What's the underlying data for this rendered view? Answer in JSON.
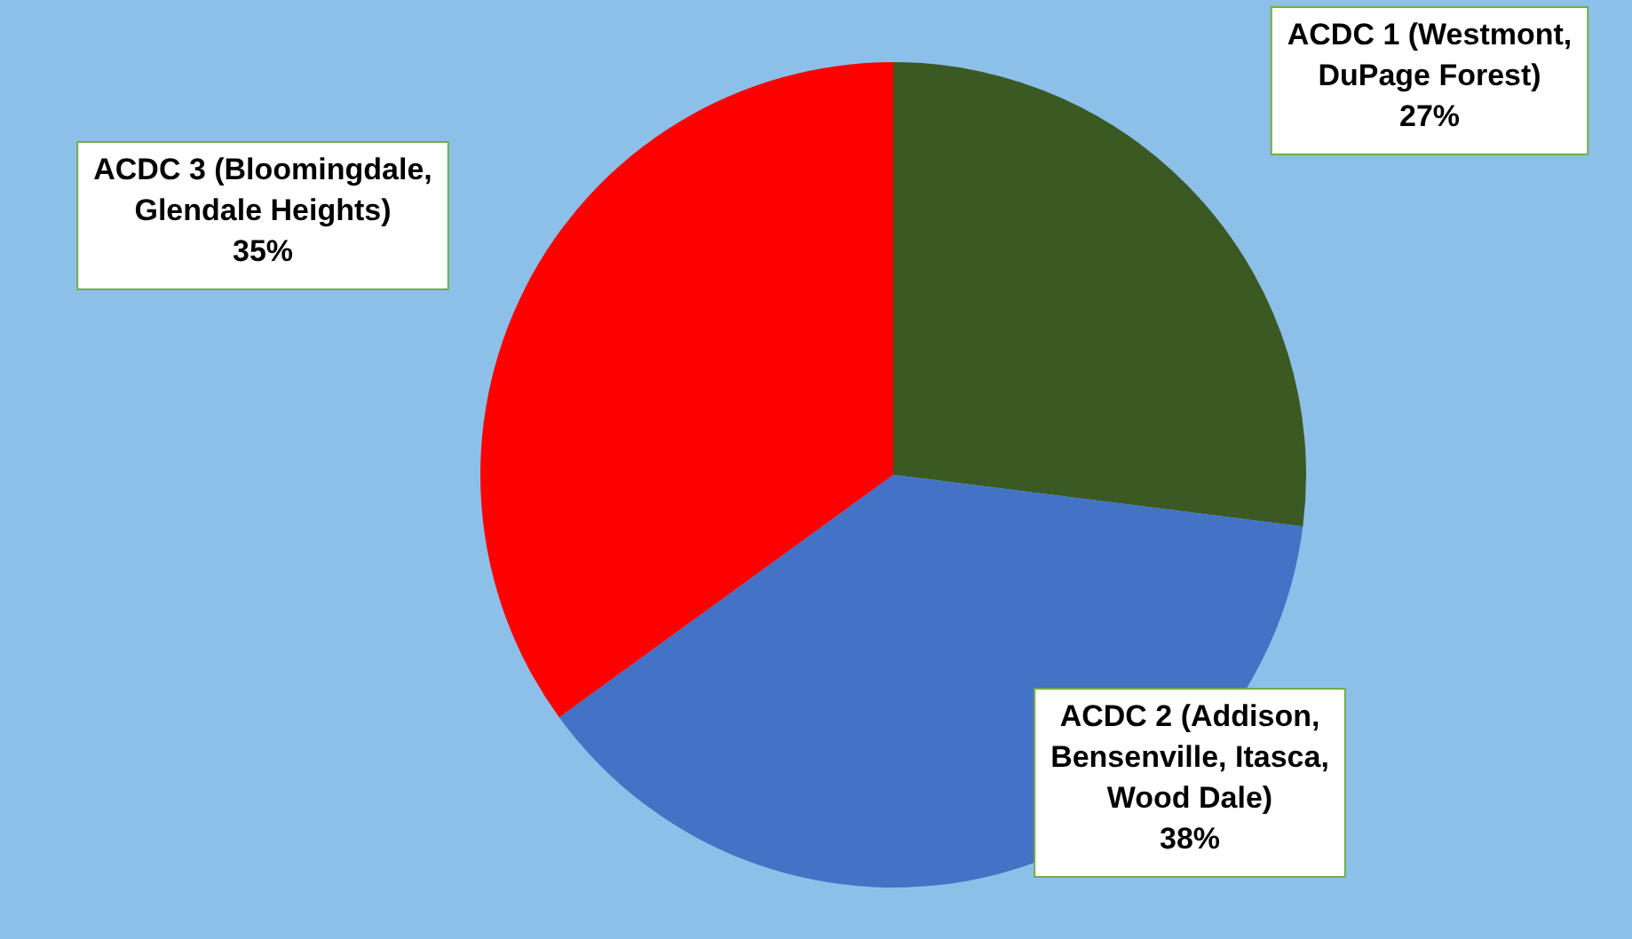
{
  "chart_data": {
    "type": "pie",
    "categories": [
      "ACDC 1 (Westmont, DuPage Forest)",
      "ACDC 2 (Addison, Bensenville, Itasca, Wood Dale)",
      "ACDC 3 (Bloomingdale, Glendale Heights)"
    ],
    "values": [
      27,
      38,
      35
    ],
    "colors": [
      "#3b5a23",
      "#4472c4",
      "#ff0000"
    ],
    "value_labels": [
      "27%",
      "38%",
      "35%"
    ],
    "legend": false
  }
}
